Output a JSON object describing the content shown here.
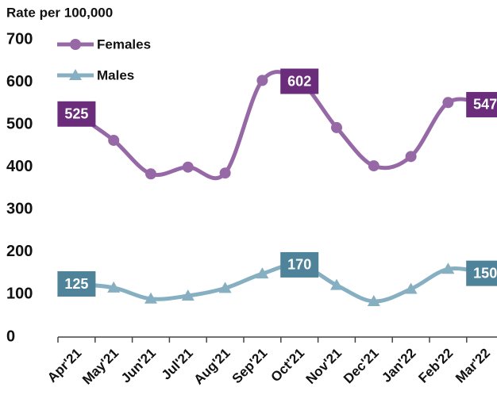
{
  "chart_data": {
    "type": "line",
    "title": "Rate per 100,000",
    "categories": [
      "Apr'21",
      "May'21",
      "Jun'21",
      "Jul'21",
      "Aug'21",
      "Sep'21",
      "Oct'21",
      "Nov'21",
      "Dec'21",
      "Jan'22",
      "Feb'22",
      "Mar'22"
    ],
    "series": [
      {
        "name": "Females",
        "color": "#9668a6",
        "label_color": "#6b2c7c",
        "marker": "circle",
        "values": [
          525,
          463,
          384,
          400,
          386,
          604,
          602,
          493,
          403,
          425,
          552,
          547
        ]
      },
      {
        "name": "Males",
        "color": "#86b0c1",
        "label_color": "#4f8399",
        "marker": "triangle",
        "values": [
          125,
          116,
          90,
          97,
          115,
          149,
          170,
          122,
          84,
          113,
          160,
          150
        ]
      }
    ],
    "labeled_indices": [
      0,
      6,
      11
    ],
    "ylim": [
      0,
      700
    ],
    "yticks": [
      0,
      100,
      200,
      300,
      400,
      500,
      600,
      700
    ],
    "legend": "upper left",
    "grid": false
  }
}
